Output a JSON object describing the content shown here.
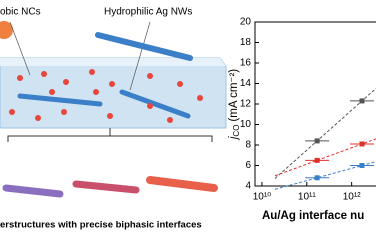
{
  "schematic": {
    "nc_label": "obic NCs",
    "nw_label": "Hydrophilic Ag NWs",
    "caption": "erstructures with precise biphasic interfaces"
  },
  "chart_data": {
    "type": "scatter",
    "ylabel_main": "j",
    "ylabel_sub": "CO",
    "ylabel_unit": "(mA cm⁻²)",
    "xlabel": "Au/Ag interface nu",
    "xlog": true,
    "xlim": [
      7000000000,
      20000000000000
    ],
    "xticks": [
      {
        "value": 10000000000,
        "label": "10¹⁰"
      },
      {
        "value": 100000000000,
        "label": "10¹¹"
      },
      {
        "value": 1000000000000,
        "label": "10¹²"
      },
      {
        "value": 10000000000000,
        "label": "10¹³"
      }
    ],
    "ylim": [
      4,
      20
    ],
    "yticks": [
      4,
      6,
      8,
      10,
      12,
      14,
      16,
      18,
      20
    ],
    "series": [
      {
        "color": "#555555",
        "x": [
          170000000000,
          1700000000000
        ],
        "values": [
          8.4,
          12.3
        ]
      },
      {
        "color": "#e0302c",
        "x": [
          170000000000,
          1700000000000
        ],
        "values": [
          6.5,
          8.1
        ]
      },
      {
        "color": "#3a7fc8",
        "x": [
          170000000000,
          1700000000000
        ],
        "values": [
          4.8,
          6.0
        ]
      }
    ]
  }
}
